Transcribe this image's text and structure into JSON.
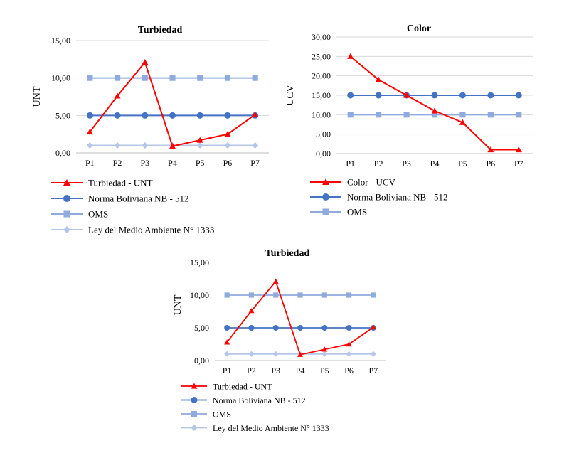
{
  "colors": {
    "turbidity": "#ff0000",
    "color_series": "#ff0000",
    "nb512": "#4472c4",
    "oms": "#8faadc",
    "ley1333": "#b4c7e7"
  },
  "chart_data": [
    {
      "type": "line",
      "title": "Turbiedad",
      "xlabel": "",
      "ylabel": "UNT",
      "categories": [
        "P1",
        "P2",
        "P3",
        "P4",
        "P5",
        "P6",
        "P7"
      ],
      "ylim": [
        0,
        15
      ],
      "yticks": [
        0,
        5,
        10,
        15
      ],
      "ytick_labels": [
        "0,00",
        "5,00",
        "10,00",
        "15,00"
      ],
      "grid": true,
      "legend": "bottom",
      "series": [
        {
          "name": "Turbiedad - UNT",
          "color": "#ff0000",
          "marker": "triangle",
          "values": [
            2.8,
            7.6,
            12.1,
            0.9,
            1.7,
            2.5,
            5.1
          ]
        },
        {
          "name": "Norma Boliviana NB - 512",
          "color": "#4472c4",
          "marker": "circle",
          "values": [
            5,
            5,
            5,
            5,
            5,
            5,
            5
          ]
        },
        {
          "name": "OMS",
          "color": "#8faadc",
          "marker": "square",
          "values": [
            10,
            10,
            10,
            10,
            10,
            10,
            10
          ]
        },
        {
          "name": "Ley del Medio Ambiente N° 1333",
          "color": "#b4c7e7",
          "marker": "diamond",
          "values": [
            1,
            1,
            1,
            1,
            1,
            1,
            1
          ]
        }
      ]
    },
    {
      "type": "line",
      "title": "Color",
      "xlabel": "",
      "ylabel": "UCV",
      "categories": [
        "P1",
        "P2",
        "P3",
        "P4",
        "P5",
        "P6",
        "P7"
      ],
      "ylim": [
        0,
        30
      ],
      "yticks": [
        0,
        5,
        10,
        15,
        20,
        25,
        30
      ],
      "ytick_labels": [
        "0,00",
        "5,00",
        "10,00",
        "15,00",
        "20,00",
        "25,00",
        "30,00"
      ],
      "grid": true,
      "legend": "bottom",
      "series": [
        {
          "name": "Color - UCV",
          "color": "#ff0000",
          "marker": "triangle",
          "values": [
            25,
            19,
            15,
            11,
            8,
            1,
            1
          ]
        },
        {
          "name": "Norma Boliviana NB - 512",
          "color": "#4472c4",
          "marker": "circle",
          "values": [
            15,
            15,
            15,
            15,
            15,
            15,
            15
          ]
        },
        {
          "name": "OMS",
          "color": "#8faadc",
          "marker": "square",
          "values": [
            10,
            10,
            10,
            10,
            10,
            10,
            10
          ]
        }
      ]
    },
    {
      "type": "line",
      "title": "Turbiedad",
      "xlabel": "",
      "ylabel": "UNT",
      "categories": [
        "P1",
        "P2",
        "P3",
        "P4",
        "P5",
        "P6",
        "P7"
      ],
      "ylim": [
        0,
        15
      ],
      "yticks": [
        0,
        5,
        10,
        15
      ],
      "ytick_labels": [
        "0,00",
        "5,00",
        "10,00",
        "15,00"
      ],
      "grid": false,
      "legend": "bottom",
      "series": [
        {
          "name": "Turbiedad - UNT",
          "color": "#ff0000",
          "marker": "triangle",
          "values": [
            2.8,
            7.6,
            12.1,
            0.9,
            1.7,
            2.5,
            5.1
          ]
        },
        {
          "name": "Norma Boliviana NB - 512",
          "color": "#4472c4",
          "marker": "circle",
          "values": [
            5,
            5,
            5,
            5,
            5,
            5,
            5
          ]
        },
        {
          "name": "OMS",
          "color": "#8faadc",
          "marker": "square",
          "values": [
            10,
            10,
            10,
            10,
            10,
            10,
            10
          ]
        },
        {
          "name": "Ley del Medio Ambiente N° 1333",
          "color": "#b4c7e7",
          "marker": "diamond",
          "values": [
            1,
            1,
            1,
            1,
            1,
            1,
            1
          ]
        }
      ]
    }
  ]
}
